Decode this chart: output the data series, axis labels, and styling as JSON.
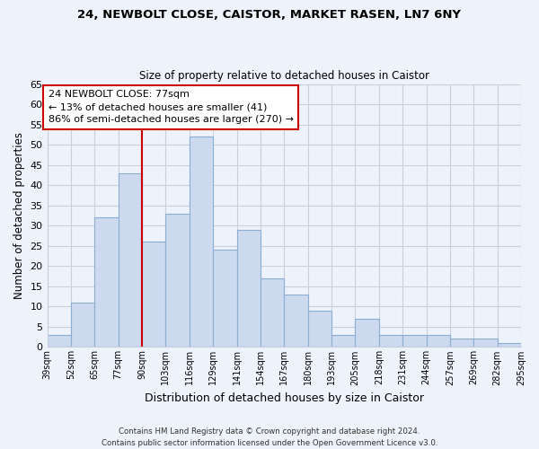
{
  "title": "24, NEWBOLT CLOSE, CAISTOR, MARKET RASEN, LN7 6NY",
  "subtitle": "Size of property relative to detached houses in Caistor",
  "xlabel": "Distribution of detached houses by size in Caistor",
  "ylabel": "Number of detached properties",
  "bar_color": "#ccd9ee",
  "bar_edge_color": "#8bafd4",
  "categories": [
    "39sqm",
    "52sqm",
    "65sqm",
    "77sqm",
    "90sqm",
    "103sqm",
    "116sqm",
    "129sqm",
    "141sqm",
    "154sqm",
    "167sqm",
    "180sqm",
    "193sqm",
    "205sqm",
    "218sqm",
    "231sqm",
    "244sqm",
    "257sqm",
    "269sqm",
    "282sqm",
    "295sqm"
  ],
  "values": [
    3,
    11,
    32,
    43,
    26,
    33,
    52,
    24,
    29,
    17,
    13,
    9,
    3,
    7,
    3,
    3,
    3,
    2,
    2,
    1
  ],
  "ylim": [
    0,
    65
  ],
  "yticks": [
    0,
    5,
    10,
    15,
    20,
    25,
    30,
    35,
    40,
    45,
    50,
    55,
    60,
    65
  ],
  "vline_x_index": 3,
  "vline_color": "#cc0000",
  "annotation_title": "24 NEWBOLT CLOSE: 77sqm",
  "annotation_line1": "← 13% of detached houses are smaller (41)",
  "annotation_line2": "86% of semi-detached houses are larger (270) →",
  "annotation_box_edge": "#cc0000",
  "footer_line1": "Contains HM Land Registry data © Crown copyright and database right 2024.",
  "footer_line2": "Contains public sector information licensed under the Open Government Licence v3.0.",
  "background_color": "#eef2fa",
  "grid_color": "#c8d0e0",
  "title_fontsize": 9.5,
  "subtitle_fontsize": 8.5
}
